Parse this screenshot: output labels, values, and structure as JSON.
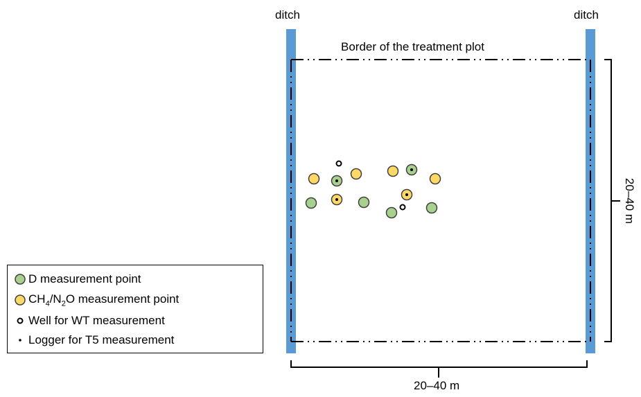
{
  "labels": {
    "ditch_left": "ditch",
    "ditch_right": "ditch",
    "border": "Border of  the treatment plot",
    "dim_horizontal": "20–40 m",
    "dim_vertical": "20–40 m"
  },
  "legend": {
    "d_point": "D measurement point",
    "ch4_prefix": "CH",
    "ch4_sub": "4",
    "ch4_mid": "/N",
    "n2o_sub": "2",
    "ch4_suffix": "O measurement point",
    "well": "Well for WT measurement",
    "logger": "Logger for T5 measurement"
  },
  "colors": {
    "ditch": "#5b9bd5",
    "d_point": "#a9d18e",
    "ch4_point": "#ffd966",
    "outline": "#404040"
  }
}
